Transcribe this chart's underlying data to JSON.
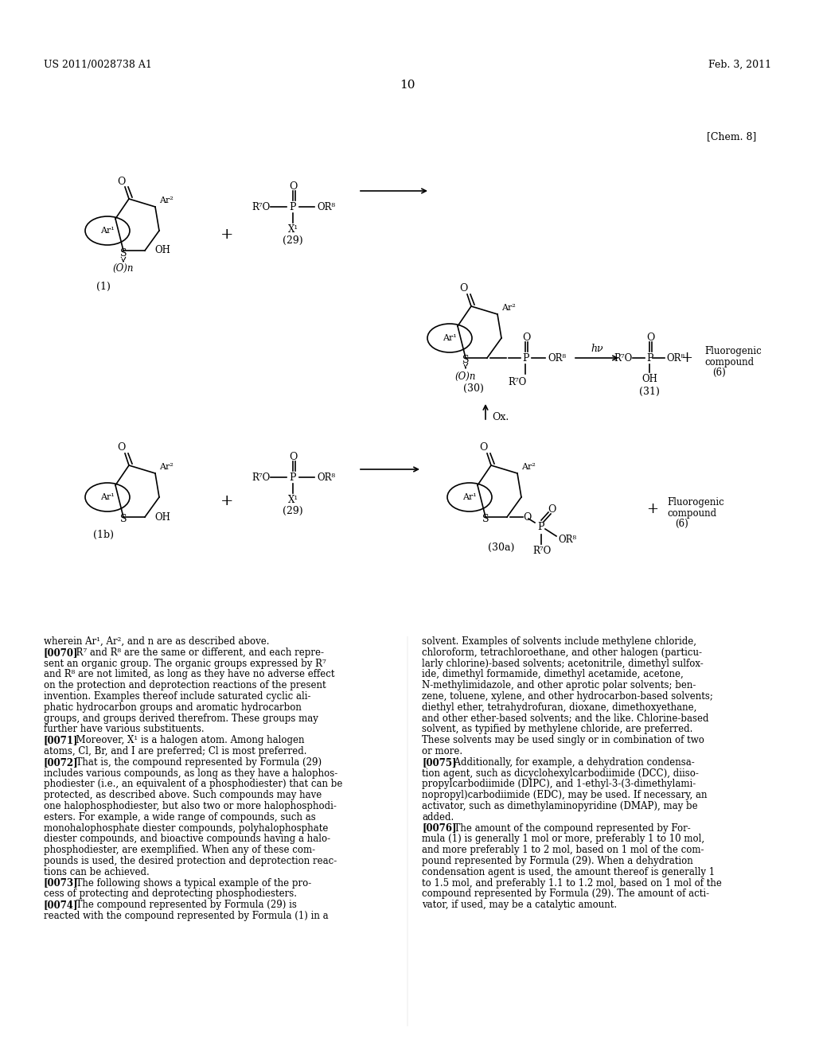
{
  "bg_color": "#ffffff",
  "header_left": "US 2011/0028738 A1",
  "header_right": "Feb. 3, 2011",
  "page_number": "10",
  "chem_label": "[Chem. 8]",
  "text_body_left": [
    "wherein Ar¹, Ar², and n are as described above.",
    "[0070]  R⁷ and R⁸ are the same or different, and each repre-",
    "sent an organic group. The organic groups expressed by R⁷",
    "and R⁸ are not limited, as long as they have no adverse effect",
    "on the protection and deprotection reactions of the present",
    "invention. Examples thereof include saturated cyclic ali-",
    "phatic hydrocarbon groups and aromatic hydrocarbon",
    "groups, and groups derived therefrom. These groups may",
    "further have various substituents.",
    "[0071]  Moreover, X¹ is a halogen atom. Among halogen",
    "atoms, Cl, Br, and I are preferred; Cl is most preferred.",
    "[0072]  That is, the compound represented by Formula (29)",
    "includes various compounds, as long as they have a halophos-",
    "phodiester (i.e., an equivalent of a phosphodiester) that can be",
    "protected, as described above. Such compounds may have",
    "one halophosphodiester, but also two or more halophosphodi-",
    "esters. For example, a wide range of compounds, such as",
    "monohalophosphate diester compounds, polyhalophosphate",
    "diester compounds, and bioactive compounds having a halo-",
    "phosphodiester, are exemplified. When any of these com-",
    "pounds is used, the desired protection and deprotection reac-",
    "tions can be achieved.",
    "[0073]  The following shows a typical example of the pro-",
    "cess of protecting and deprotecting phosphodiesters.",
    "[0074]  The compound represented by Formula (29) is",
    "reacted with the compound represented by Formula (1) in a"
  ],
  "text_body_right": [
    "solvent. Examples of solvents include methylene chloride,",
    "chloroform, tetrachloroethane, and other halogen (particu-",
    "larly chlorine)-based solvents; acetonitrile, dimethyl sulfox-",
    "ide, dimethyl formamide, dimethyl acetamide, acetone,",
    "N-methylimidazole, and other aprotic polar solvents; ben-",
    "zene, toluene, xylene, and other hydrocarbon-based solvents;",
    "diethyl ether, tetrahydrofuran, dioxane, dimethoxyethane,",
    "and other ether-based solvents; and the like. Chlorine-based",
    "solvent, as typified by methylene chloride, are preferred.",
    "These solvents may be used singly or in combination of two",
    "or more.",
    "[0075]  Additionally, for example, a dehydration condensa-",
    "tion agent, such as dicyclohexylcarbodiimide (DCC), diiso-",
    "propylcarbodiimide (DIPC), and 1-ethyl-3-(3-dimethylami-",
    "nopropyl)carbodiimide (EDC), may be used. If necessary, an",
    "activator, such as dimethylaminopyridine (DMAP), may be",
    "added.",
    "[0076]  The amount of the compound represented by For-",
    "mula (1) is generally 1 mol or more, preferably 1 to 10 mol,",
    "and more preferably 1 to 2 mol, based on 1 mol of the com-",
    "pound represented by Formula (29). When a dehydration",
    "condensation agent is used, the amount thereof is generally 1",
    "to 1.5 mol, and preferably 1.1 to 1.2 mol, based on 1 mol of the",
    "compound represented by Formula (29). The amount of acti-",
    "vator, if used, may be a catalytic amount."
  ]
}
